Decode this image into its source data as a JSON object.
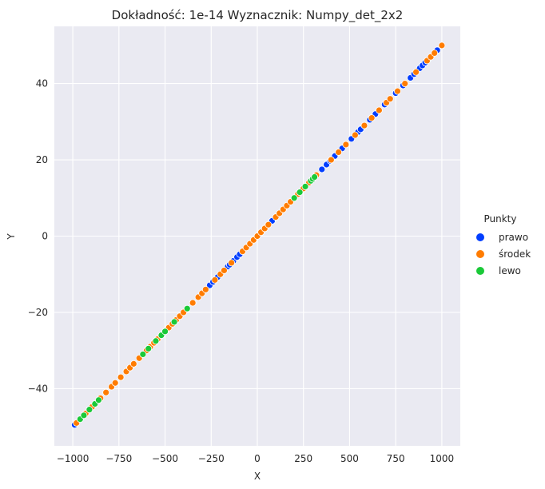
{
  "chart_data": {
    "type": "scatter",
    "title": "Dokładność: 1e-14  Wyznacznik: Numpy_det_2x2",
    "xlabel": "X",
    "ylabel": "Y",
    "xlim": [
      -1100,
      1100
    ],
    "ylim": [
      -55,
      55
    ],
    "xticks": [
      -1000,
      -750,
      -500,
      -250,
      0,
      250,
      500,
      750,
      1000
    ],
    "yticks": [
      -40,
      -20,
      0,
      20,
      40
    ],
    "xtick_labels": [
      "−1000",
      "−750",
      "−500",
      "−250",
      "0",
      "250",
      "500",
      "750",
      "1000"
    ],
    "ytick_labels": [
      "−40",
      "−20",
      "0",
      "20",
      "40"
    ],
    "grid": true,
    "background": "#eaeaf2",
    "legend": {
      "title": "Punkty",
      "placement": "right"
    },
    "series": [
      {
        "name": "prawo",
        "color": "#023eff",
        "x": [
          -990,
          -500,
          -258,
          -240,
          -215,
          -160,
          -150,
          -130,
          -110,
          -95,
          80,
          350,
          375,
          395,
          420,
          460,
          510,
          545,
          560,
          610,
          640,
          690,
          750,
          790,
          830,
          850,
          880,
          895,
          910,
          975
        ],
        "y": [
          -49.5,
          -25,
          -12.9,
          -12,
          -10.75,
          -8,
          -7.5,
          -6.5,
          -5.5,
          -4.75,
          4,
          17.5,
          18.75,
          19.75,
          21,
          23,
          25.5,
          27.25,
          28,
          30.5,
          32,
          34.5,
          37.5,
          39.5,
          41.5,
          42.5,
          44,
          44.75,
          45.5,
          48.75
        ]
      },
      {
        "name": "środek",
        "color": "#ff7c00",
        "x": [
          -980,
          -930,
          -895,
          -850,
          -820,
          -790,
          -770,
          -740,
          -710,
          -690,
          -670,
          -640,
          -600,
          -580,
          -560,
          -540,
          -520,
          -480,
          -460,
          -440,
          -420,
          -400,
          -350,
          -320,
          -300,
          -280,
          -230,
          -200,
          -180,
          -140,
          -80,
          -60,
          -40,
          -20,
          0,
          20,
          40,
          60,
          100,
          120,
          140,
          160,
          180,
          200,
          220,
          250,
          280,
          320,
          400,
          440,
          480,
          530,
          580,
          620,
          660,
          700,
          720,
          760,
          800,
          860,
          920,
          940,
          960,
          1000
        ],
        "y": [
          -49,
          -46.5,
          -44.75,
          -42.5,
          -41,
          -39.5,
          -38.5,
          -37,
          -35.5,
          -34.5,
          -33.5,
          -32,
          -30,
          -29,
          -28,
          -27,
          -26,
          -24,
          -23,
          -22,
          -21,
          -20,
          -17.5,
          -16,
          -15,
          -14,
          -11.5,
          -10,
          -9,
          -7,
          -4,
          -3,
          -2,
          -1,
          0,
          1,
          2,
          3,
          5,
          6,
          7,
          8,
          9,
          10,
          11,
          12.5,
          14,
          16,
          20,
          22,
          24,
          26.5,
          29,
          31,
          33,
          35,
          36,
          38,
          40,
          43,
          46,
          47,
          48,
          50
        ]
      },
      {
        "name": "lewo",
        "color": "#1ac938",
        "x": [
          -960,
          -940,
          -910,
          -880,
          -860,
          -620,
          -590,
          -550,
          -520,
          -500,
          -450,
          -380,
          200,
          230,
          260,
          290,
          300,
          310
        ],
        "y": [
          -48,
          -47,
          -45.5,
          -44,
          -43,
          -31,
          -29.5,
          -27.5,
          -26,
          -25,
          -22.5,
          -19,
          10,
          11.5,
          13,
          14.5,
          15,
          15.5
        ]
      }
    ]
  }
}
